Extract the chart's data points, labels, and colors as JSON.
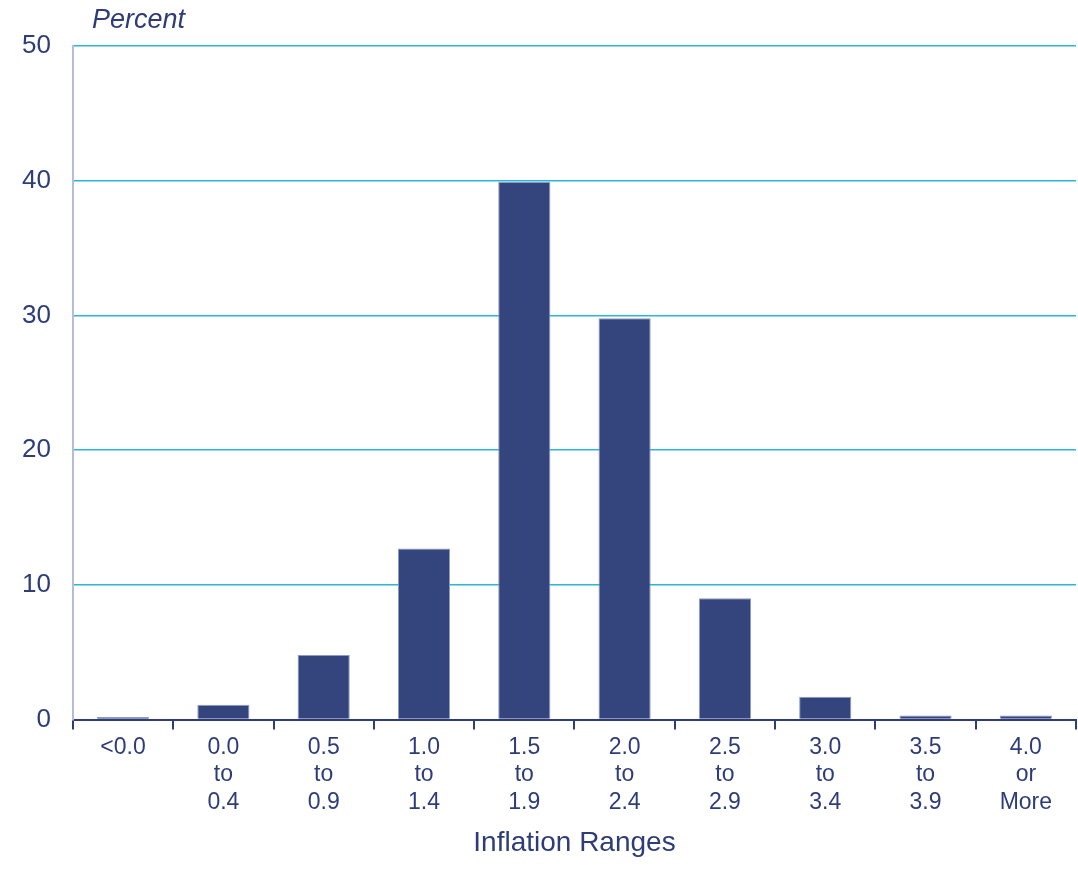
{
  "chart_data": {
    "type": "bar",
    "ylabel": "Percent",
    "xlabel": "Inflation Ranges",
    "categories": [
      "<0.0",
      "0.0 to 0.4",
      "0.5 to 0.9",
      "1.0 to 1.4",
      "1.5 to 1.9",
      "2.0 to 2.4",
      "2.5 to 2.9",
      "3.0 to 3.4",
      "3.5 to 3.9",
      "4.0 or More"
    ],
    "values": [
      0.2,
      1.1,
      4.8,
      12.7,
      39.9,
      29.8,
      9.0,
      1.7,
      0.3,
      0.3
    ],
    "color": "#34457e",
    "ylim": [
      0,
      50
    ],
    "yticks": [
      0,
      10,
      20,
      30,
      40,
      50
    ],
    "grid": "y",
    "legend": false
  }
}
